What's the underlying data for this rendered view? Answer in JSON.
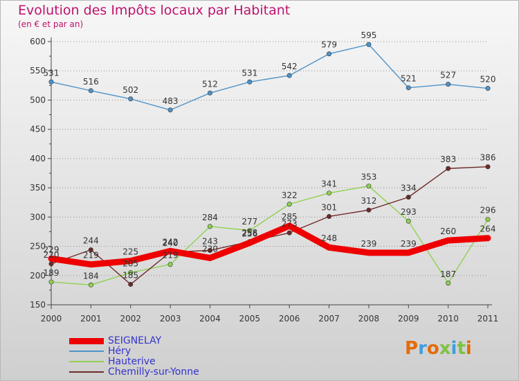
{
  "header": {
    "title": "Evolution des Impôts locaux par Habitant",
    "subtitle": "(en € et par an)"
  },
  "logo": {
    "letters": [
      "P",
      "r",
      "o",
      "x",
      "i",
      "t",
      "i"
    ]
  },
  "chart_data": {
    "type": "line",
    "title": "Evolution des Impôts locaux par Habitant",
    "subtitle": "(en € et par an)",
    "xlabel": "",
    "ylabel": "",
    "x": [
      "2000",
      "2001",
      "2002",
      "2003",
      "2004",
      "2005",
      "2006",
      "2007",
      "2008",
      "2009",
      "2010",
      "2011"
    ],
    "ylim": [
      150,
      600
    ],
    "yticks": [
      "150",
      "200",
      "250",
      "300",
      "350",
      "400",
      "450",
      "500",
      "550",
      "600"
    ],
    "grid": "horizontal dotted",
    "legend_position": "bottom-left",
    "series": [
      {
        "name": "SEIGNELAY",
        "color": "#ee0000",
        "emphasis": true,
        "show_markers": false,
        "values": [
          229,
          219,
          225,
          242,
          230,
          256,
          285,
          248,
          239,
          239,
          260,
          264
        ]
      },
      {
        "name": "Héry",
        "color": "#4f93c8",
        "show_markers": true,
        "values": [
          531,
          516,
          502,
          483,
          512,
          531,
          542,
          579,
          595,
          521,
          527,
          520
        ]
      },
      {
        "name": "Hauterive",
        "color": "#8fd14f",
        "show_markers": true,
        "values": [
          189,
          184,
          205,
          219,
          284,
          277,
          322,
          341,
          353,
          293,
          187,
          296
        ]
      },
      {
        "name": "Chemilly-sur-Yonne",
        "color": "#6e2a2a",
        "show_markers": true,
        "values": [
          220,
          244,
          185,
          240,
          243,
          258,
          273,
          301,
          312,
          334,
          383,
          386
        ]
      }
    ]
  }
}
